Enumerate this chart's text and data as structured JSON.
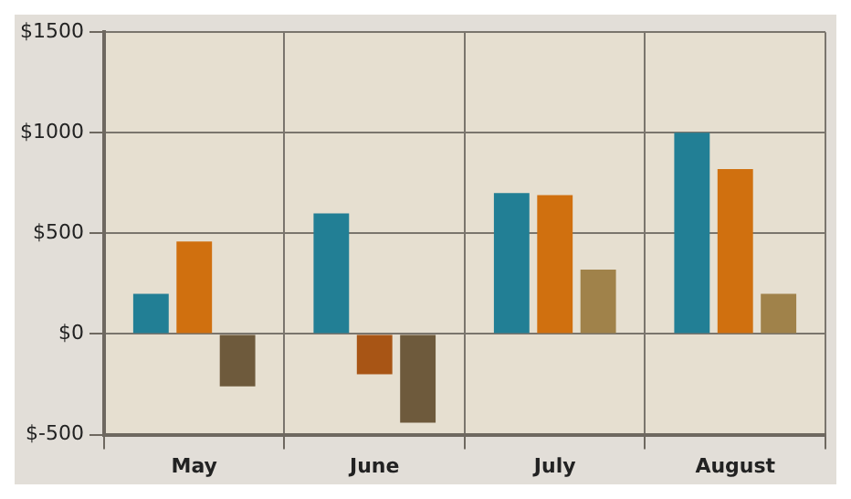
{
  "chart_data": {
    "type": "bar",
    "categories": [
      "May",
      "June",
      "July",
      "August"
    ],
    "series": [
      {
        "color": "#227f95",
        "values": [
          200,
          600,
          700,
          1000
        ]
      },
      {
        "colors": [
          "#d0700f",
          "#a85515",
          "#d0700f",
          "#d0700f"
        ],
        "values": [
          460,
          -200,
          690,
          820
        ]
      },
      {
        "colors": [
          "#6e5a3c",
          "#6e5a3c",
          "#a0824a",
          "#a0824a"
        ],
        "values": [
          -260,
          -440,
          320,
          200
        ]
      }
    ],
    "ylim": [
      -500,
      1500
    ],
    "yticks": [
      {
        "value": -500,
        "label": "$-500"
      },
      {
        "value": 0,
        "label": "$0"
      },
      {
        "value": 500,
        "label": "$500"
      },
      {
        "value": 1000,
        "label": "$1000"
      },
      {
        "value": 1500,
        "label": "$1500"
      }
    ],
    "grid": true,
    "legend": false
  }
}
